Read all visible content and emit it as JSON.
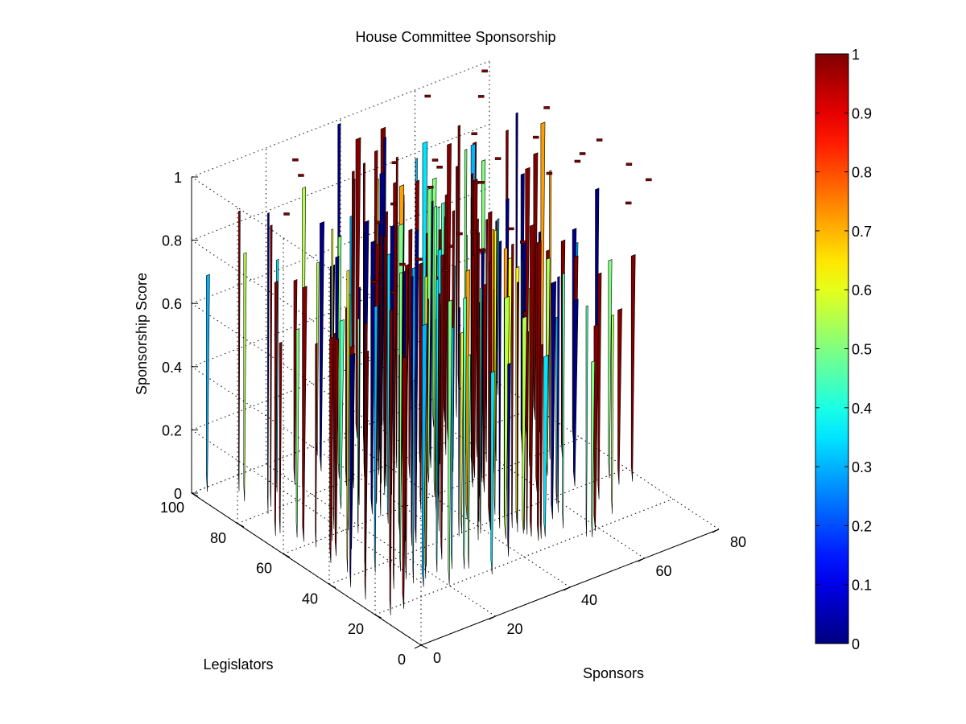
{
  "chart_data": {
    "type": "3d-surface",
    "title": "House Committee Sponsorship",
    "xlabel": "Sponsors",
    "ylabel": "Legislators",
    "zlabel": "Sponsorship Score",
    "xlim": [
      0,
      80
    ],
    "ylim": [
      0,
      100
    ],
    "zlim": [
      0,
      1
    ],
    "x_ticks": [
      "0",
      "20",
      "40",
      "60",
      "80"
    ],
    "y_ticks": [
      "0",
      "20",
      "40",
      "60",
      "80",
      "100"
    ],
    "z_ticks": [
      "0",
      "0.2",
      "0.4",
      "0.6",
      "0.8",
      "1"
    ],
    "colorbar": {
      "colormap": "jet",
      "range": [
        0,
        1
      ],
      "ticks": [
        "0",
        "0.1",
        "0.2",
        "0.3",
        "0.4",
        "0.5",
        "0.6",
        "0.7",
        "0.8",
        "0.9",
        "1"
      ]
    },
    "grid": true,
    "data_note": "Sparse sponsorship matrix rendered as thin vertical ribbons; most values are 0 or 1."
  }
}
